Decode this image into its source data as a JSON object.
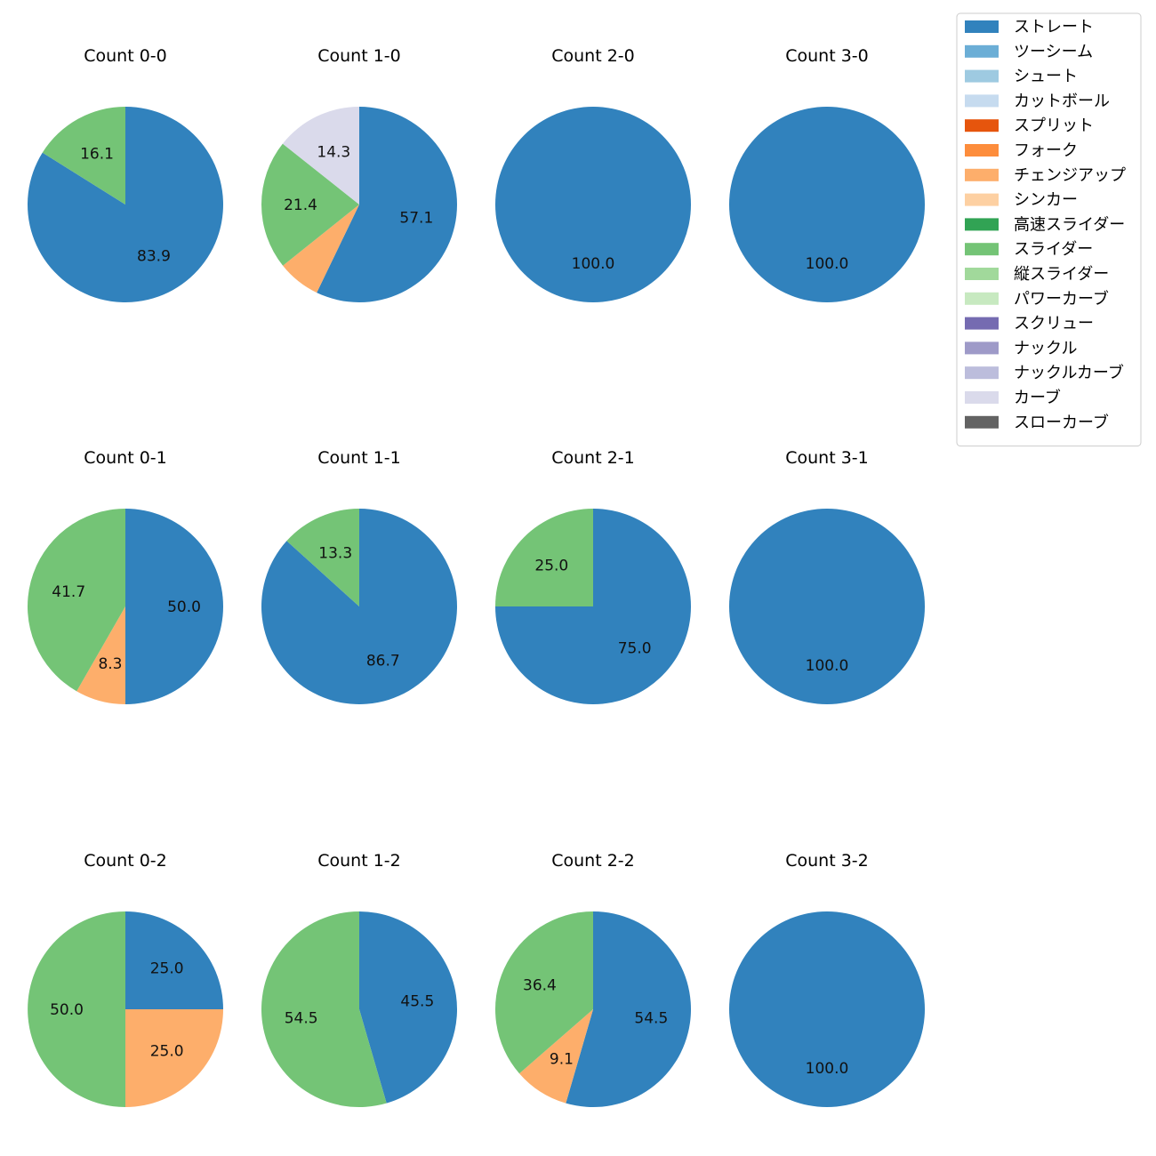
{
  "chart_data": {
    "type": "pie",
    "legend": {
      "placement": "top-right",
      "entries": [
        {
          "name": "ストレート",
          "color": "#3182bd"
        },
        {
          "name": "ツーシーム",
          "color": "#6baed6"
        },
        {
          "name": "シュート",
          "color": "#9ecae1"
        },
        {
          "name": "カットボール",
          "color": "#c6dbef"
        },
        {
          "name": "スプリット",
          "color": "#e6550d"
        },
        {
          "name": "フォーク",
          "color": "#fd8d3c"
        },
        {
          "name": "チェンジアップ",
          "color": "#fdae6b"
        },
        {
          "name": "シンカー",
          "color": "#fdd0a2"
        },
        {
          "name": "高速スライダー",
          "color": "#31a354"
        },
        {
          "name": "スライダー",
          "color": "#74c476"
        },
        {
          "name": "縦スライダー",
          "color": "#a1d99b"
        },
        {
          "name": "パワーカーブ",
          "color": "#c7e9c0"
        },
        {
          "name": "スクリュー",
          "color": "#756bb1"
        },
        {
          "name": "ナックル",
          "color": "#9e9ac8"
        },
        {
          "name": "ナックルカーブ",
          "color": "#bcbddc"
        },
        {
          "name": "カーブ",
          "color": "#dadaeb"
        },
        {
          "name": "スローカーブ",
          "color": "#636363"
        }
      ]
    },
    "pies": [
      {
        "title": "Count 0-0",
        "slices": [
          {
            "pitch": "ストレート",
            "value": 83.9,
            "label": "83.9"
          },
          {
            "pitch": "スライダー",
            "value": 16.1,
            "label": "16.1"
          }
        ]
      },
      {
        "title": "Count 1-0",
        "slices": [
          {
            "pitch": "ストレート",
            "value": 57.1,
            "label": "57.1"
          },
          {
            "pitch": "チェンジアップ",
            "value": 7.1,
            "label": ""
          },
          {
            "pitch": "スライダー",
            "value": 21.4,
            "label": "21.4"
          },
          {
            "pitch": "カーブ",
            "value": 14.3,
            "label": "14.3"
          }
        ]
      },
      {
        "title": "Count 2-0",
        "slices": [
          {
            "pitch": "ストレート",
            "value": 100.0,
            "label": "100.0"
          }
        ]
      },
      {
        "title": "Count 3-0",
        "slices": [
          {
            "pitch": "ストレート",
            "value": 100.0,
            "label": "100.0"
          }
        ]
      },
      {
        "title": "Count 0-1",
        "slices": [
          {
            "pitch": "ストレート",
            "value": 50.0,
            "label": "50.0"
          },
          {
            "pitch": "チェンジアップ",
            "value": 8.3,
            "label": "8.3"
          },
          {
            "pitch": "スライダー",
            "value": 41.7,
            "label": "41.7"
          }
        ]
      },
      {
        "title": "Count 1-1",
        "slices": [
          {
            "pitch": "ストレート",
            "value": 86.7,
            "label": "86.7"
          },
          {
            "pitch": "スライダー",
            "value": 13.3,
            "label": "13.3"
          }
        ]
      },
      {
        "title": "Count 2-1",
        "slices": [
          {
            "pitch": "ストレート",
            "value": 75.0,
            "label": "75.0"
          },
          {
            "pitch": "スライダー",
            "value": 25.0,
            "label": "25.0"
          }
        ]
      },
      {
        "title": "Count 3-1",
        "slices": [
          {
            "pitch": "ストレート",
            "value": 100.0,
            "label": "100.0"
          }
        ]
      },
      {
        "title": "Count 0-2",
        "slices": [
          {
            "pitch": "ストレート",
            "value": 25.0,
            "label": "25.0"
          },
          {
            "pitch": "チェンジアップ",
            "value": 25.0,
            "label": "25.0"
          },
          {
            "pitch": "スライダー",
            "value": 50.0,
            "label": "50.0"
          }
        ]
      },
      {
        "title": "Count 1-2",
        "slices": [
          {
            "pitch": "ストレート",
            "value": 45.5,
            "label": "45.5"
          },
          {
            "pitch": "スライダー",
            "value": 54.5,
            "label": "54.5"
          }
        ]
      },
      {
        "title": "Count 2-2",
        "slices": [
          {
            "pitch": "ストレート",
            "value": 54.5,
            "label": "54.5"
          },
          {
            "pitch": "チェンジアップ",
            "value": 9.1,
            "label": "9.1"
          },
          {
            "pitch": "スライダー",
            "value": 36.4,
            "label": "36.4"
          }
        ]
      },
      {
        "title": "Count 3-2",
        "slices": [
          {
            "pitch": "ストレート",
            "value": 100.0,
            "label": "100.0"
          }
        ]
      }
    ]
  }
}
